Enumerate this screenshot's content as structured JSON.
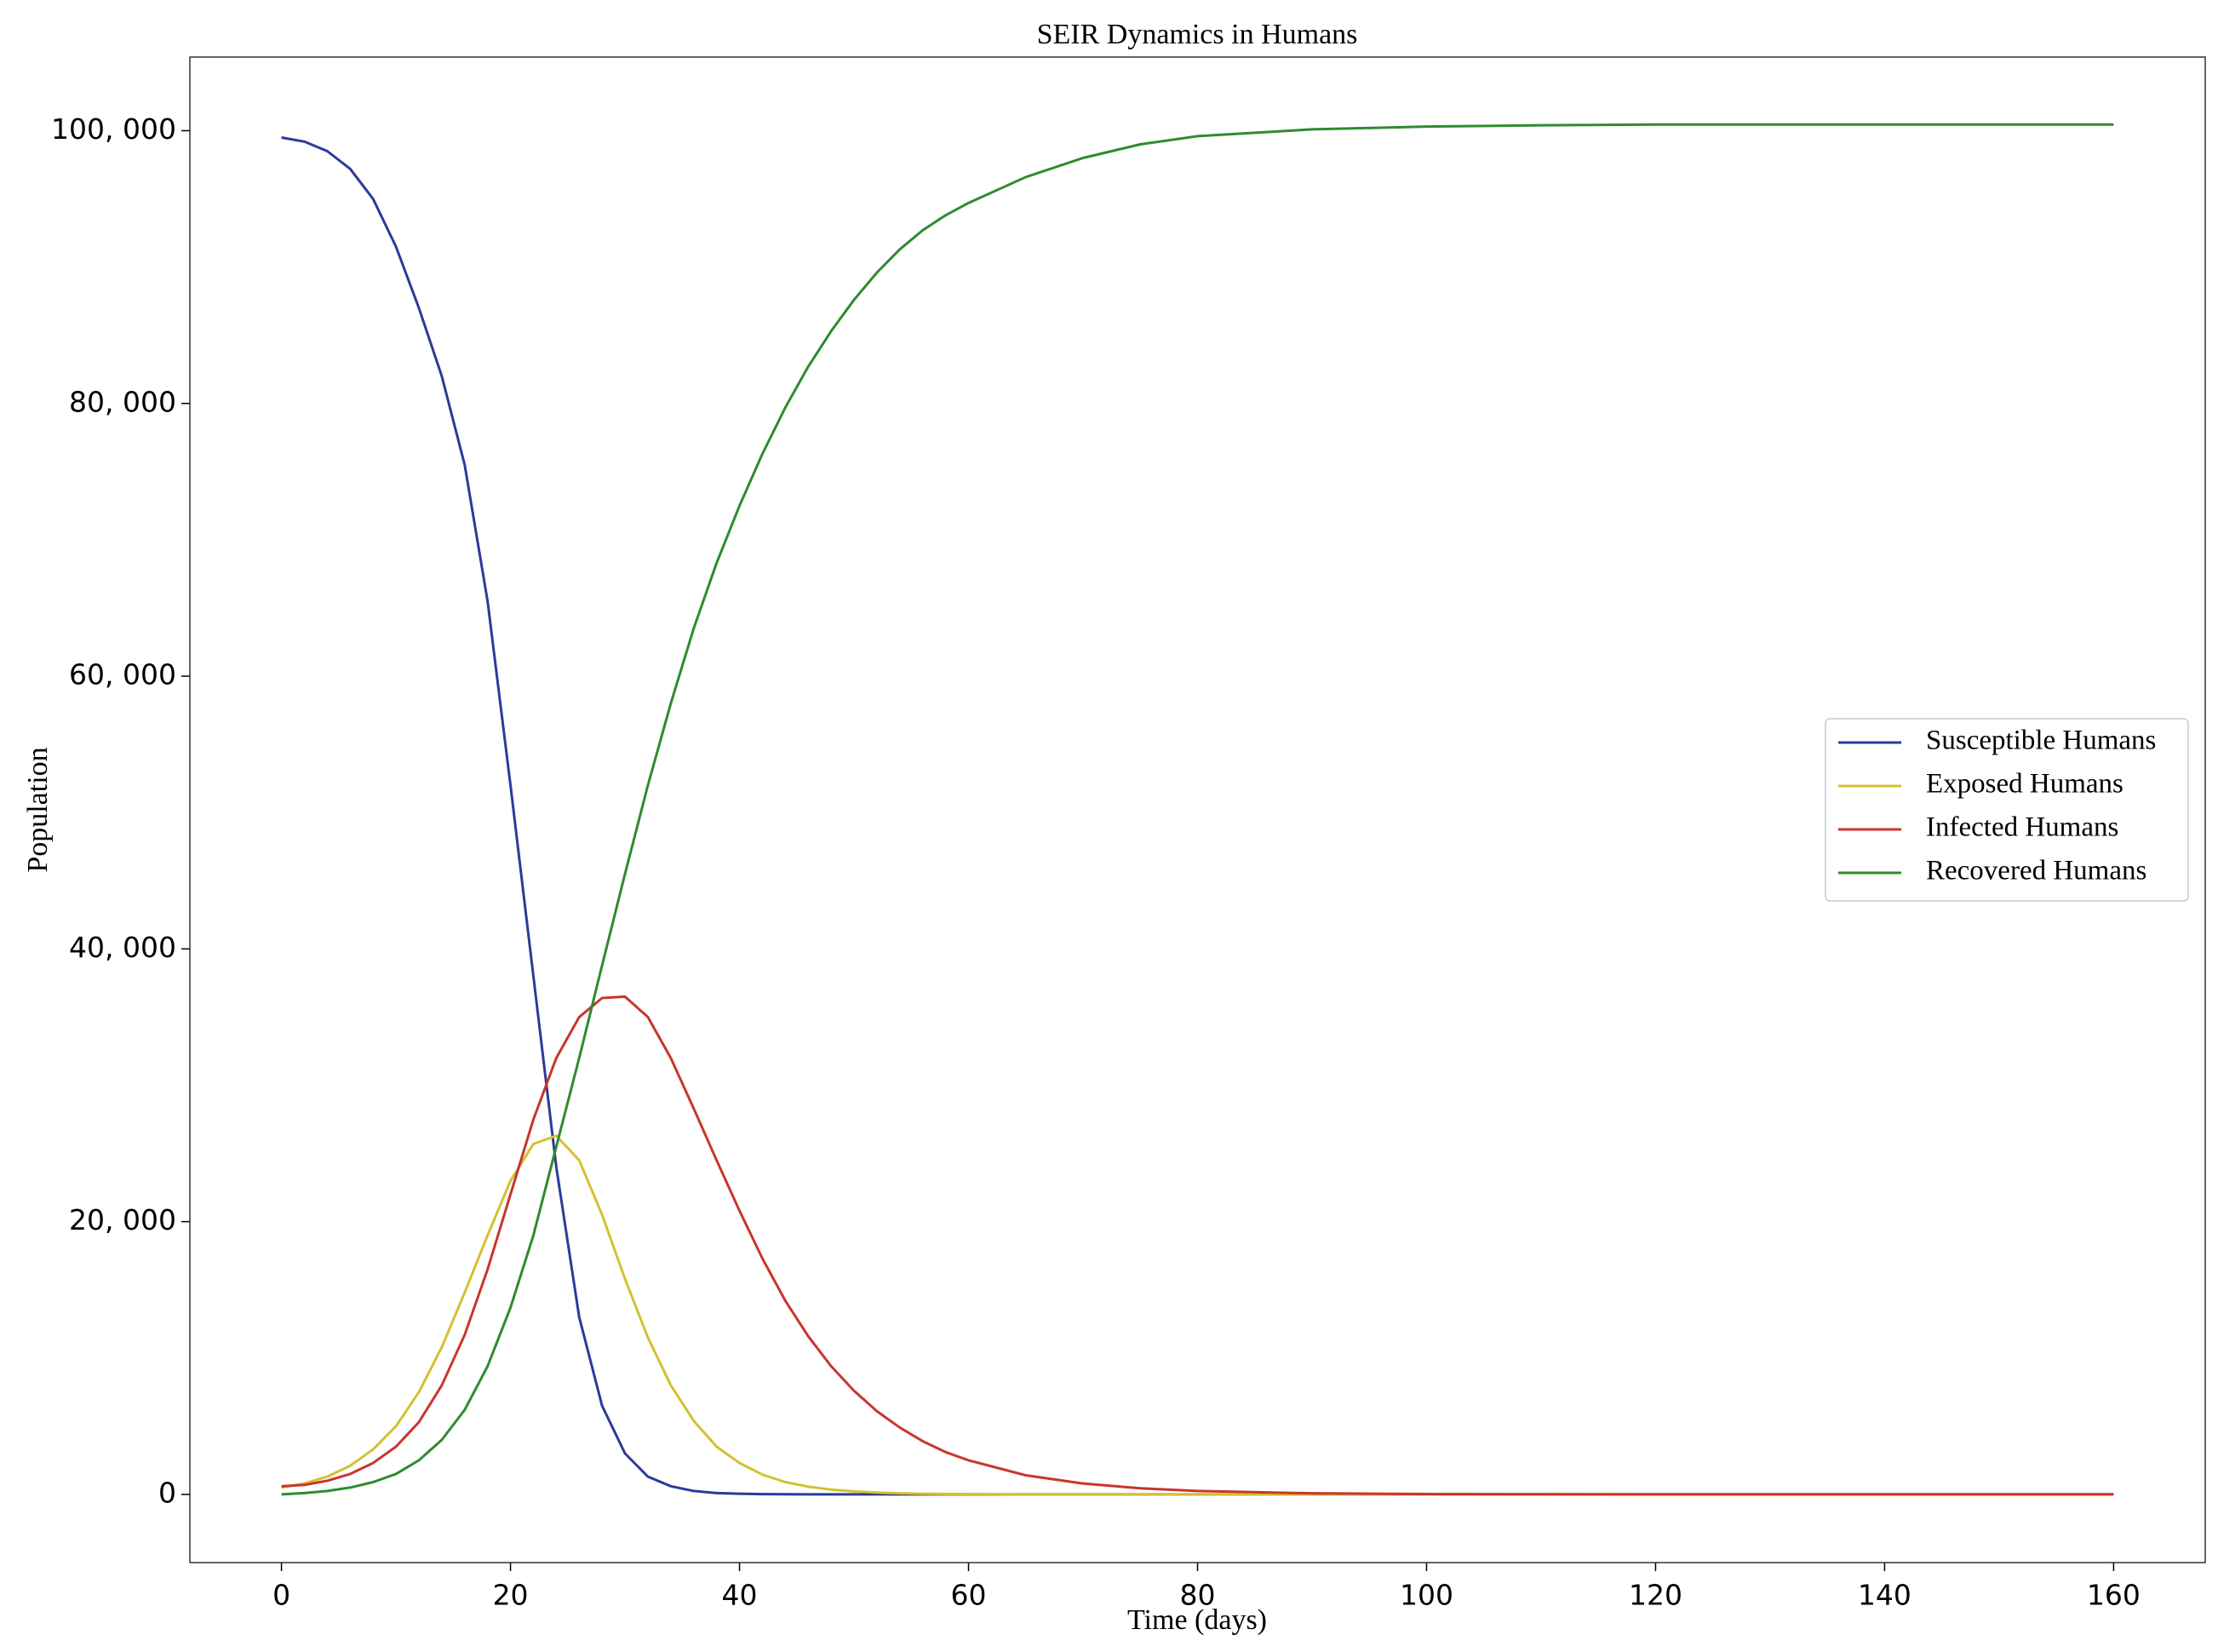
{
  "chart_data": {
    "type": "line",
    "title": "SEIR Dynamics in Humans",
    "x_label": "Time (days)",
    "y_label": "Population",
    "x": [
      0,
      2,
      4,
      6,
      8,
      10,
      12,
      14,
      16,
      18,
      20,
      22,
      24,
      26,
      28,
      30,
      32,
      34,
      36,
      38,
      40,
      42,
      44,
      46,
      48,
      50,
      52,
      54,
      56,
      58,
      60,
      65,
      70,
      75,
      80,
      90,
      100,
      110,
      120,
      130,
      140,
      150,
      160
    ],
    "series": [
      {
        "name": "Susceptible Humans",
        "color": "#2b3a9a",
        "values": [
          99500,
          99200,
          98500,
          97200,
          95000,
          91500,
          87000,
          82000,
          75500,
          65500,
          52000,
          38000,
          24000,
          13000,
          6500,
          3000,
          1300,
          600,
          250,
          100,
          50,
          20,
          10,
          5,
          0,
          0,
          0,
          0,
          0,
          0,
          0,
          0,
          0,
          0,
          0,
          0,
          0,
          0,
          0,
          0,
          0,
          0,
          0
        ]
      },
      {
        "name": "Exposed Humans",
        "color": "#d4c130",
        "values": [
          500,
          800,
          1300,
          2100,
          3300,
          5000,
          7500,
          10800,
          14800,
          19000,
          23000,
          25700,
          26300,
          24500,
          20500,
          15800,
          11500,
          8000,
          5400,
          3500,
          2300,
          1450,
          900,
          570,
          350,
          220,
          140,
          85,
          50,
          30,
          20,
          5,
          2,
          0,
          0,
          0,
          0,
          0,
          0,
          0,
          0,
          0,
          0
        ]
      },
      {
        "name": "Infected Humans",
        "color": "#c8362b",
        "values": [
          600,
          700,
          1000,
          1500,
          2300,
          3500,
          5300,
          8000,
          11700,
          16500,
          22000,
          27500,
          32000,
          35000,
          36400,
          36500,
          35000,
          32000,
          28300,
          24500,
          20800,
          17300,
          14200,
          11600,
          9400,
          7600,
          6100,
          4900,
          3900,
          3100,
          2500,
          1400,
          800,
          450,
          250,
          80,
          25,
          8,
          3,
          1,
          0,
          0,
          0
        ]
      },
      {
        "name": "Recovered Humans",
        "color": "#2e8b2e",
        "values": [
          0,
          100,
          250,
          500,
          900,
          1500,
          2500,
          4000,
          6200,
          9400,
          13700,
          19000,
          25500,
          32000,
          38800,
          45500,
          52000,
          58000,
          63500,
          68300,
          72500,
          76300,
          79700,
          82700,
          85300,
          87600,
          89600,
          91300,
          92700,
          93800,
          94700,
          96600,
          98000,
          99000,
          99600,
          100100,
          100300,
          100400,
          100450,
          100450,
          100450,
          100450,
          100450
        ]
      }
    ],
    "xlim": [
      -8,
      168
    ],
    "xticks": [
      0,
      20,
      40,
      60,
      80,
      100,
      120,
      140,
      160
    ],
    "ylim": [
      -5000,
      105400
    ],
    "yticks": [
      0,
      {
        "value": 20000,
        "label": "20, 000"
      },
      {
        "value": 40000,
        "label": "40, 000"
      },
      {
        "value": 60000,
        "label": "60, 000"
      },
      {
        "value": 80000,
        "label": "80, 000"
      },
      {
        "value": 100000,
        "label": "100, 000"
      }
    ],
    "grid": false,
    "legend": "center right"
  }
}
